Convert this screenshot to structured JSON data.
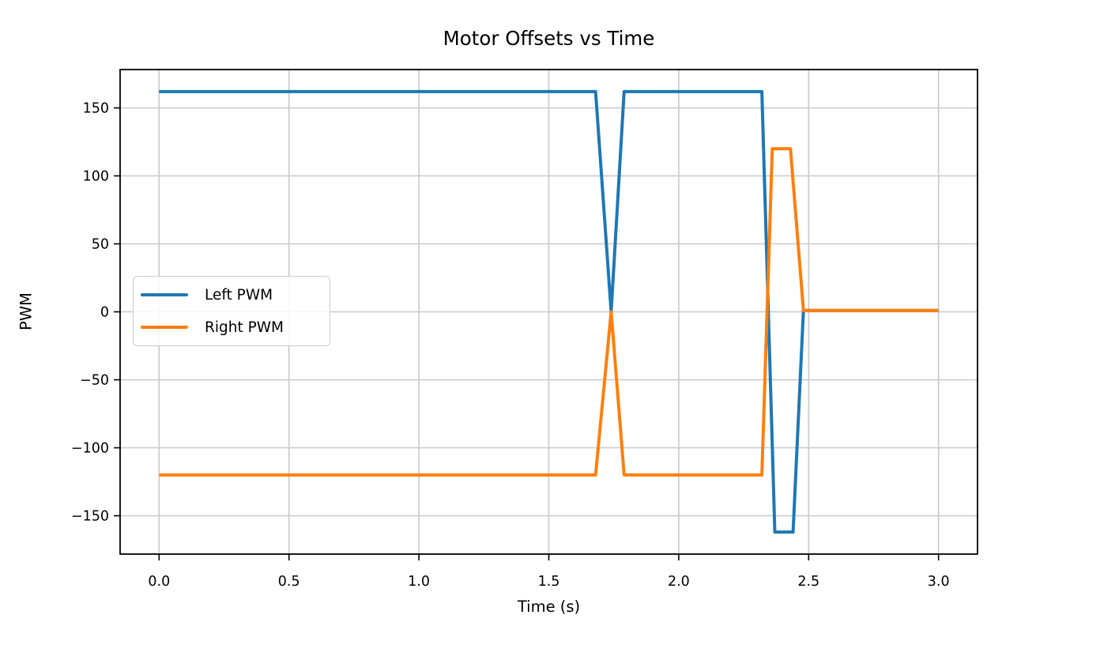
{
  "figure": {
    "title": "Motor Offsets vs Time",
    "xlabel": "Time (s)",
    "ylabel": "PWM"
  },
  "chart_data": {
    "type": "line",
    "title": "Motor Offsets vs Time",
    "xlabel": "Time (s)",
    "ylabel": "PWM",
    "xlim": [
      -0.15,
      3.15
    ],
    "ylim": [
      -178.2,
      178.2
    ],
    "grid": true,
    "grid_color": "#c9c9c9",
    "spine_color": "#000000",
    "background": "#ffffff",
    "xticks": {
      "values": [
        0.0,
        0.5,
        1.0,
        1.5,
        2.0,
        2.5,
        3.0
      ],
      "labels": [
        "0.0",
        "0.5",
        "1.0",
        "1.5",
        "2.0",
        "2.5",
        "3.0"
      ]
    },
    "yticks": {
      "values": [
        150,
        100,
        50,
        0,
        -50,
        -100,
        -150
      ],
      "labels": [
        "150",
        "100",
        "50",
        "0",
        "−50",
        "−100",
        "−150"
      ]
    },
    "legend": {
      "position": "center-left",
      "entries": [
        "Left PWM",
        "Right PWM"
      ]
    },
    "series": [
      {
        "name": "Left PWM",
        "color": "#1f77b4",
        "x": [
          0.0,
          1.68,
          1.74,
          1.79,
          2.32,
          2.37,
          2.44,
          2.48,
          3.0
        ],
        "y": [
          162,
          162,
          0,
          162,
          162,
          -162,
          -162,
          1,
          1
        ]
      },
      {
        "name": "Right PWM",
        "color": "#ff7f0e",
        "x": [
          0.0,
          1.68,
          1.74,
          1.79,
          2.32,
          2.36,
          2.43,
          2.48,
          3.0
        ],
        "y": [
          -120,
          -120,
          0,
          -120,
          -120,
          120,
          120,
          1,
          1
        ]
      }
    ]
  }
}
